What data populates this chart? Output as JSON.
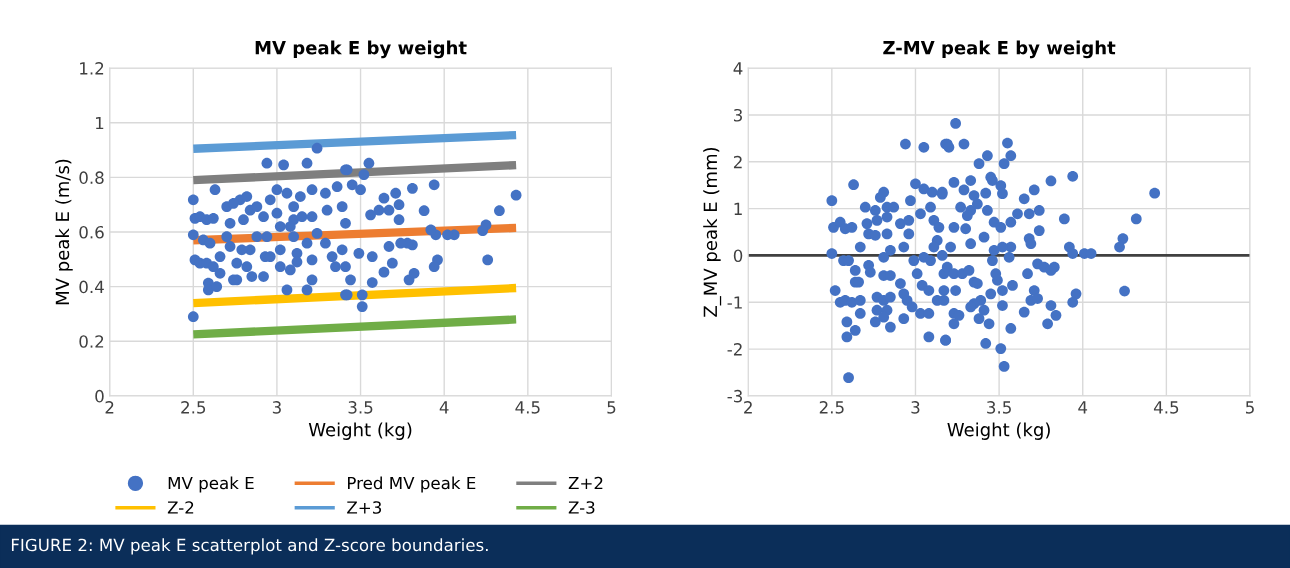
{
  "chart_data": [
    {
      "type": "scatter",
      "title": "MV peak E by weight",
      "xlabel": "Weight (kg)",
      "ylabel": "MV peak E (m/s)",
      "xlim": [
        2,
        5
      ],
      "xticks": [
        2,
        2.5,
        3,
        3.5,
        4,
        4.5,
        5
      ],
      "ylim": [
        0,
        1.2
      ],
      "yticks": [
        0,
        0.2,
        0.4,
        0.6,
        0.8,
        1,
        1.2
      ],
      "grid": true,
      "legend": "bottom",
      "annotations": [
        "FIGURE 2: MV peak E scatterplot and Z-score boundaries."
      ],
      "series": [
        {
          "name": "MV peak E",
          "color": "#4472c4",
          "marker": "circle",
          "x": [
            4.43,
            4.33,
            4.25,
            4.23,
            4.26,
            4.06,
            4.02,
            3.95,
            3.92,
            3.94,
            3.88,
            3.81,
            3.96,
            3.94,
            3.81,
            3.78,
            3.73,
            3.73,
            3.71,
            3.64,
            3.67,
            3.69,
            3.64,
            3.57,
            3.79,
            3.82,
            3.51,
            3.51,
            3.42,
            3.55,
            3.52,
            3.42,
            3.56,
            3.61,
            3.5,
            3.45,
            3.67,
            3.74,
            3.57,
            3.49,
            3.41,
            3.44,
            2.5,
            2.5,
            2.5,
            2.51,
            2.51,
            2.63,
            2.94,
            3.04,
            3.18,
            3.24,
            3.41,
            2.54,
            2.58,
            2.62,
            2.56,
            2.6,
            2.54,
            2.58,
            2.62,
            2.59,
            2.59,
            2.64,
            2.66,
            2.7,
            2.72,
            2.7,
            2.72,
            2.76,
            2.76,
            2.78,
            2.82,
            2.8,
            2.84,
            2.84,
            2.82,
            2.85,
            2.92,
            2.94,
            2.93,
            2.92,
            2.96,
            3.0,
            3.0,
            3.02,
            3.02,
            3.02,
            3.06,
            3.06,
            3.1,
            3.1,
            3.1,
            3.12,
            3.08,
            3.14,
            3.15,
            3.18,
            3.18,
            3.21,
            3.21,
            3.24,
            3.21,
            3.21,
            3.29,
            3.3,
            3.29,
            3.33,
            3.35,
            3.36,
            3.39,
            3.41,
            3.39,
            3.41,
            2.88,
            2.74,
            2.88,
            2.79,
            2.66,
            2.74,
            3.08,
            2.96,
            3.12
          ],
          "values": [
            0.735,
            0.678,
            0.626,
            0.605,
            0.498,
            0.59,
            0.59,
            0.59,
            0.608,
            0.773,
            0.678,
            0.76,
            0.498,
            0.473,
            0.553,
            0.559,
            0.645,
            0.7,
            0.742,
            0.724,
            0.547,
            0.486,
            0.453,
            0.415,
            0.425,
            0.449,
            0.327,
            0.37,
            0.37,
            0.852,
            0.81,
            0.828,
            0.663,
            0.68,
            0.755,
            0.773,
            0.68,
            0.559,
            0.51,
            0.522,
            0.473,
            0.425,
            0.29,
            0.718,
            0.59,
            0.65,
            0.498,
            0.755,
            0.852,
            0.846,
            0.852,
            0.907,
            0.828,
            0.656,
            0.645,
            0.65,
            0.571,
            0.559,
            0.486,
            0.486,
            0.473,
            0.413,
            0.388,
            0.4,
            0.449,
            0.693,
            0.632,
            0.583,
            0.547,
            0.486,
            0.425,
            0.718,
            0.73,
            0.645,
            0.68,
            0.535,
            0.473,
            0.437,
            0.656,
            0.583,
            0.51,
            0.437,
            0.718,
            0.755,
            0.669,
            0.62,
            0.535,
            0.473,
            0.388,
            0.742,
            0.693,
            0.645,
            0.583,
            0.522,
            0.461,
            0.73,
            0.656,
            0.559,
            0.388,
            0.755,
            0.656,
            0.595,
            0.498,
            0.425,
            0.742,
            0.68,
            0.559,
            0.51,
            0.473,
            0.766,
            0.693,
            0.632,
            0.535,
            0.37,
            0.693,
            0.705,
            0.583,
            0.535,
            0.51,
            0.425,
            0.62,
            0.51,
            0.49
          ]
        },
        {
          "name": "Pred MV peak E",
          "type": "line",
          "color": "#ed7d31",
          "x": [
            2.5,
            4.43
          ],
          "values": [
            0.57,
            0.615
          ]
        },
        {
          "name": "Z+2",
          "type": "line",
          "color": "#7f7f7f",
          "x": [
            2.5,
            4.43
          ],
          "values": [
            0.79,
            0.845
          ]
        },
        {
          "name": "Z-2",
          "type": "line",
          "color": "#ffc000",
          "x": [
            2.5,
            4.43
          ],
          "values": [
            0.34,
            0.395
          ]
        },
        {
          "name": "Z+3",
          "type": "line",
          "color": "#5b9bd5",
          "x": [
            2.5,
            4.43
          ],
          "values": [
            0.905,
            0.955
          ]
        },
        {
          "name": "Z-3",
          "type": "line",
          "color": "#70ad47",
          "x": [
            2.5,
            4.43
          ],
          "values": [
            0.225,
            0.28
          ]
        }
      ]
    },
    {
      "type": "scatter",
      "title": "Z-MV peak E by weight",
      "xlabel": "Weight (kg)",
      "ylabel": "Z_MV peak E (mm)",
      "xlim": [
        2,
        5
      ],
      "xticks": [
        2,
        2.5,
        3,
        3.5,
        4,
        4.5,
        5
      ],
      "ylim": [
        -3,
        4
      ],
      "yticks": [
        -3,
        -2,
        -1,
        0,
        1,
        2,
        3,
        4
      ],
      "grid": true,
      "marker": "circle",
      "ref_lines": [
        {
          "axis": "y",
          "value": 0,
          "color": "#404040"
        }
      ],
      "series": [
        {
          "color": "#4472c4",
          "x": [
            2.5,
            2.5,
            2.52,
            2.63,
            2.51,
            2.55,
            2.58,
            2.62,
            2.57,
            2.6,
            2.64,
            2.64,
            2.66,
            2.55,
            2.58,
            2.62,
            2.67,
            2.67,
            2.59,
            2.64,
            2.59,
            2.6,
            2.67,
            2.7,
            2.71,
            2.72,
            2.72,
            2.73,
            2.76,
            2.77,
            2.76,
            2.79,
            2.81,
            2.83,
            2.87,
            2.83,
            2.83,
            2.81,
            2.85,
            2.81,
            2.85,
            2.77,
            2.81,
            2.85,
            2.77,
            2.83,
            2.76,
            2.85,
            2.81,
            2.93,
            2.91,
            2.96,
            2.97,
            3.0,
            2.94,
            3.05,
            3.18,
            3.05,
            3.1,
            3.16,
            2.96,
            2.91,
            2.93,
            2.95,
            2.98,
            2.93,
            3.01,
            2.99,
            3.05,
            3.09,
            3.03,
            3.09,
            3.11,
            3.14,
            3.13,
            3.11,
            3.04,
            3.08,
            3.03,
            3.08,
            3.08,
            3.18,
            3.13,
            3.17,
            3.24,
            3.19,
            3.2,
            3.29,
            3.55,
            3.57,
            3.53,
            3.43,
            3.38,
            3.23,
            3.33,
            3.45,
            3.46,
            3.16,
            3.29,
            3.35,
            3.42,
            3.51,
            3.52,
            3.27,
            3.33,
            3.37,
            3.43,
            3.31,
            3.65,
            3.71,
            3.81,
            3.94,
            4.43,
            4.32,
            4.24,
            4.22,
            4.25,
            4.01,
            4.05,
            3.92,
            3.94,
            3.89,
            3.74,
            3.68,
            3.61,
            3.57,
            3.47,
            3.51,
            3.74,
            3.68,
            3.69,
            3.41,
            3.3,
            3.23,
            3.57,
            3.52,
            3.47,
            3.46,
            3.33,
            3.21,
            3.16,
            3.56,
            3.73,
            3.77,
            3.81,
            3.83,
            3.67,
            3.19,
            3.23,
            3.28,
            3.32,
            3.35,
            3.37,
            3.48,
            3.49,
            3.52,
            3.58,
            3.24,
            3.17,
            3.17,
            3.45,
            3.39,
            3.35,
            3.41,
            3.33,
            3.52,
            3.71,
            3.69,
            3.73,
            3.96,
            3.94,
            3.81,
            3.84,
            3.79,
            3.65,
            3.23,
            3.26,
            3.23,
            3.38,
            3.44,
            3.57,
            3.18,
            3.42,
            3.51,
            3.53
          ],
          "values": [
            1.17,
            0.04,
            -0.75,
            1.51,
            0.6,
            0.71,
            0.57,
            0.6,
            -0.11,
            -0.11,
            -0.32,
            -0.57,
            -0.57,
            -1.0,
            -0.96,
            -1.0,
            -0.96,
            -1.24,
            -1.42,
            -1.6,
            -1.74,
            -2.61,
            0.18,
            1.03,
            0.68,
            0.46,
            -0.21,
            -0.36,
            0.96,
            0.75,
            0.43,
            1.24,
            1.35,
            1.03,
            1.03,
            0.82,
            0.46,
            -0.04,
            0.11,
            -0.43,
            -0.43,
            -0.89,
            -0.96,
            -0.89,
            -1.17,
            -1.17,
            -1.42,
            -1.53,
            -1.32,
            0.18,
            0.68,
            0.75,
            1.17,
            1.53,
            2.38,
            2.31,
            2.38,
            1.42,
            1.35,
            1.31,
            0.46,
            -0.6,
            -0.82,
            -0.96,
            -1.1,
            -1.35,
            -0.39,
            -0.11,
            -0.04,
            -0.11,
            0.89,
            1.03,
            0.75,
            0.6,
            0.32,
            0.18,
            -0.64,
            -0.75,
            -1.24,
            -1.24,
            -1.74,
            -1.81,
            -0.96,
            -0.39,
            2.82,
            2.38,
            2.31,
            2.38,
            2.4,
            2.13,
            1.96,
            2.13,
            1.96,
            1.56,
            1.6,
            1.67,
            1.6,
            1.35,
            1.4,
            1.28,
            1.33,
            1.49,
            1.32,
            1.03,
            0.96,
            1.1,
            0.96,
            0.85,
            1.21,
            1.4,
            1.59,
            1.69,
            1.33,
            0.78,
            0.36,
            0.18,
            -0.76,
            0.04,
            0.04,
            0.18,
            0.04,
            0.78,
            0.96,
            0.89,
            0.89,
            0.71,
            0.71,
            0.6,
            0.53,
            0.36,
            0.25,
            0.39,
            0.57,
            0.6,
            0.18,
            0.18,
            0.11,
            -0.11,
            0.25,
            0.18,
            0.0,
            -0.04,
            -0.18,
            -0.25,
            -0.32,
            -0.25,
            -0.39,
            -0.25,
            -0.39,
            -0.39,
            -0.32,
            -0.57,
            -0.6,
            -0.39,
            -0.53,
            -0.75,
            -0.64,
            -0.75,
            -0.75,
            -0.96,
            -0.82,
            -0.96,
            -1.03,
            -1.17,
            -1.1,
            -1.07,
            -0.75,
            -0.96,
            -0.92,
            -0.82,
            -1.0,
            -1.07,
            -1.28,
            -1.46,
            -1.21,
            -1.24,
            -1.28,
            -1.46,
            -1.35,
            -1.46,
            -1.56,
            -1.81,
            -1.88,
            -1.99,
            -2.37
          ]
        }
      ]
    }
  ]
}
